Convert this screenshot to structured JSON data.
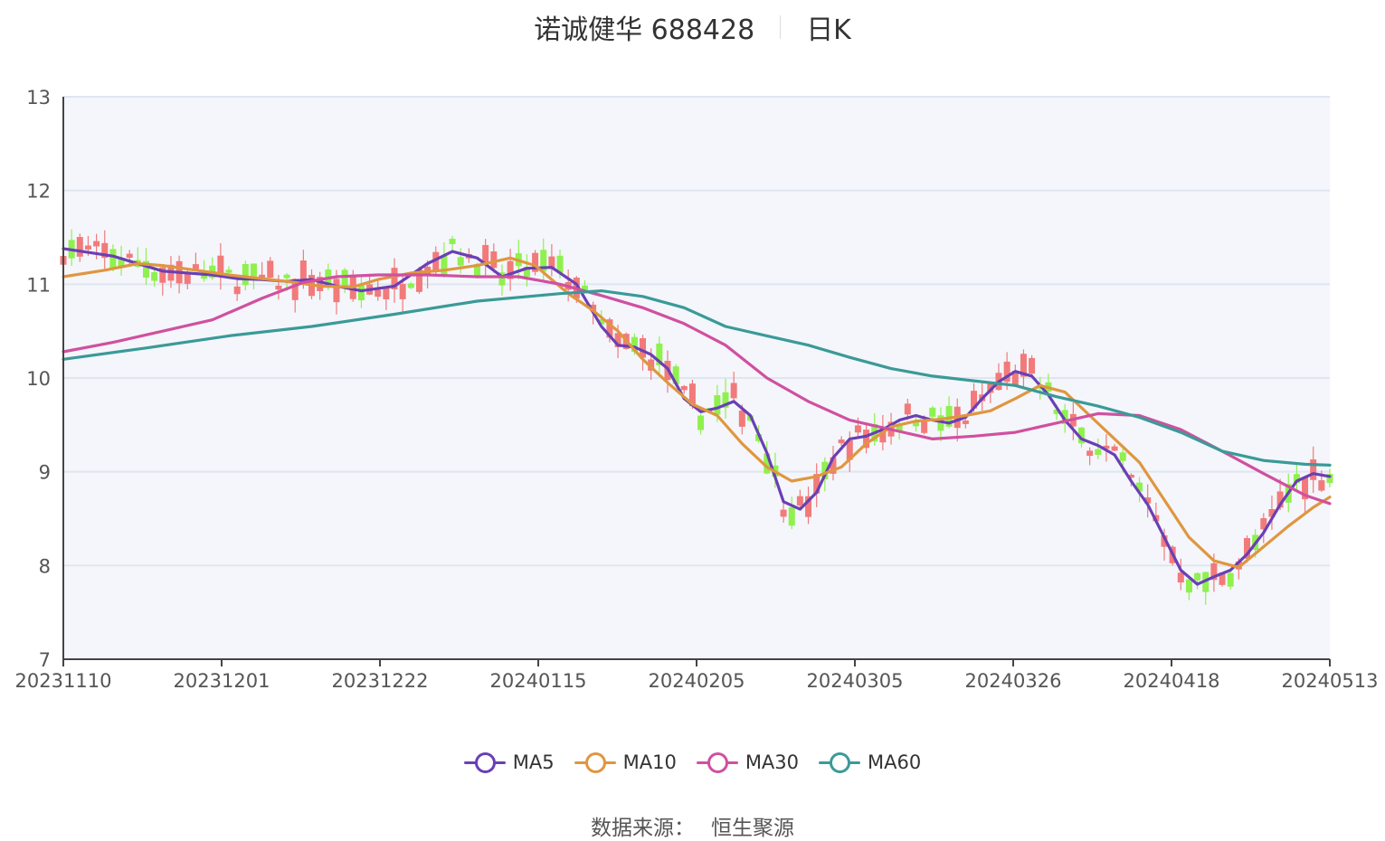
{
  "title": {
    "name": "诺诚健华 688428",
    "period": "日K"
  },
  "legend": [
    {
      "name": "MA5",
      "color": "#6a3fb5"
    },
    {
      "name": "MA10",
      "color": "#e0963f"
    },
    {
      "name": "MA30",
      "color": "#d050a0"
    },
    {
      "name": "MA60",
      "color": "#3a9a98"
    }
  ],
  "source": {
    "label": "数据来源：",
    "value": "恒生聚源"
  },
  "chart_data": {
    "type": "candlestick",
    "y_ticks": [
      7,
      8,
      9,
      10,
      11,
      12,
      13
    ],
    "ylim": [
      7,
      13
    ],
    "x_labels": [
      "20231110",
      "20231201",
      "20231222",
      "20240115",
      "20240205",
      "20240305",
      "20240326",
      "20240418",
      "20240513"
    ],
    "colors": {
      "up": "#f27a7a",
      "down": "#8ff04e",
      "grid": "#dfe6f0",
      "plot_bg": "#f4f6fb"
    },
    "series": [
      {
        "name": "MA5",
        "color": "#6a3fb5",
        "points": [
          [
            0,
            11.38
          ],
          [
            6,
            11.3
          ],
          [
            12,
            11.14
          ],
          [
            18,
            11.1
          ],
          [
            21,
            11.06
          ],
          [
            24,
            11.05
          ],
          [
            27,
            11.03
          ],
          [
            30,
            11.05
          ],
          [
            33,
            10.98
          ],
          [
            36,
            10.93
          ],
          [
            40,
            10.98
          ],
          [
            44,
            11.22
          ],
          [
            47,
            11.35
          ],
          [
            50,
            11.28
          ],
          [
            53,
            11.08
          ],
          [
            56,
            11.17
          ],
          [
            59,
            11.18
          ],
          [
            62,
            11.0
          ],
          [
            65,
            10.55
          ],
          [
            67,
            10.35
          ],
          [
            69,
            10.33
          ],
          [
            71,
            10.25
          ],
          [
            73,
            10.1
          ],
          [
            75,
            9.78
          ],
          [
            77,
            9.64
          ],
          [
            79,
            9.68
          ],
          [
            81,
            9.75
          ],
          [
            83,
            9.6
          ],
          [
            85,
            9.2
          ],
          [
            87,
            8.68
          ],
          [
            89,
            8.6
          ],
          [
            91,
            8.78
          ],
          [
            93,
            9.15
          ],
          [
            95,
            9.35
          ],
          [
            97,
            9.38
          ],
          [
            99,
            9.45
          ],
          [
            101,
            9.55
          ],
          [
            103,
            9.6
          ],
          [
            105,
            9.55
          ],
          [
            107,
            9.52
          ],
          [
            109,
            9.58
          ],
          [
            111,
            9.78
          ],
          [
            113,
            9.96
          ],
          [
            115,
            10.07
          ],
          [
            117,
            10.02
          ],
          [
            119,
            9.82
          ],
          [
            121,
            9.55
          ],
          [
            123,
            9.35
          ],
          [
            125,
            9.28
          ],
          [
            127,
            9.18
          ],
          [
            129,
            8.9
          ],
          [
            131,
            8.65
          ],
          [
            133,
            8.3
          ],
          [
            135,
            7.95
          ],
          [
            137,
            7.8
          ],
          [
            139,
            7.88
          ],
          [
            141,
            7.95
          ],
          [
            143,
            8.12
          ],
          [
            145,
            8.35
          ],
          [
            147,
            8.65
          ],
          [
            149,
            8.9
          ],
          [
            151,
            8.98
          ],
          [
            153,
            8.95
          ]
        ]
      },
      {
        "name": "MA10",
        "color": "#e0963f",
        "points": [
          [
            0,
            11.08
          ],
          [
            5,
            11.15
          ],
          [
            9,
            11.22
          ],
          [
            12,
            11.2
          ],
          [
            16,
            11.15
          ],
          [
            20,
            11.1
          ],
          [
            24,
            11.06
          ],
          [
            28,
            11.02
          ],
          [
            31,
            10.98
          ],
          [
            35,
            10.97
          ],
          [
            38,
            11.05
          ],
          [
            42,
            11.12
          ],
          [
            46,
            11.15
          ],
          [
            50,
            11.2
          ],
          [
            54,
            11.28
          ],
          [
            57,
            11.2
          ],
          [
            61,
            10.9
          ],
          [
            64,
            10.72
          ],
          [
            67,
            10.5
          ],
          [
            70,
            10.2
          ],
          [
            73,
            9.95
          ],
          [
            76,
            9.72
          ],
          [
            79,
            9.6
          ],
          [
            82,
            9.3
          ],
          [
            85,
            9.05
          ],
          [
            88,
            8.9
          ],
          [
            91,
            8.95
          ],
          [
            94,
            9.05
          ],
          [
            97,
            9.3
          ],
          [
            100,
            9.48
          ],
          [
            103,
            9.54
          ],
          [
            106,
            9.56
          ],
          [
            109,
            9.6
          ],
          [
            112,
            9.65
          ],
          [
            115,
            9.78
          ],
          [
            118,
            9.92
          ],
          [
            121,
            9.85
          ],
          [
            124,
            9.6
          ],
          [
            127,
            9.35
          ],
          [
            130,
            9.1
          ],
          [
            133,
            8.7
          ],
          [
            136,
            8.3
          ],
          [
            139,
            8.05
          ],
          [
            142,
            7.98
          ],
          [
            145,
            8.2
          ],
          [
            148,
            8.42
          ],
          [
            151,
            8.62
          ],
          [
            153,
            8.73
          ]
        ]
      },
      {
        "name": "MA30",
        "color": "#d050a0",
        "points": [
          [
            0,
            10.28
          ],
          [
            6,
            10.38
          ],
          [
            12,
            10.5
          ],
          [
            18,
            10.62
          ],
          [
            24,
            10.85
          ],
          [
            29,
            11.02
          ],
          [
            33,
            11.08
          ],
          [
            38,
            11.1
          ],
          [
            44,
            11.1
          ],
          [
            50,
            11.08
          ],
          [
            55,
            11.08
          ],
          [
            60,
            11.0
          ],
          [
            65,
            10.88
          ],
          [
            70,
            10.75
          ],
          [
            75,
            10.58
          ],
          [
            80,
            10.35
          ],
          [
            85,
            10.0
          ],
          [
            90,
            9.75
          ],
          [
            95,
            9.55
          ],
          [
            100,
            9.45
          ],
          [
            105,
            9.35
          ],
          [
            110,
            9.38
          ],
          [
            115,
            9.42
          ],
          [
            120,
            9.52
          ],
          [
            125,
            9.62
          ],
          [
            130,
            9.6
          ],
          [
            135,
            9.45
          ],
          [
            140,
            9.22
          ],
          [
            145,
            8.98
          ],
          [
            150,
            8.75
          ],
          [
            153,
            8.66
          ]
        ]
      },
      {
        "name": "MA60",
        "color": "#3a9a98",
        "points": [
          [
            0,
            10.2
          ],
          [
            10,
            10.32
          ],
          [
            20,
            10.45
          ],
          [
            30,
            10.55
          ],
          [
            40,
            10.68
          ],
          [
            50,
            10.82
          ],
          [
            60,
            10.9
          ],
          [
            65,
            10.93
          ],
          [
            70,
            10.87
          ],
          [
            75,
            10.75
          ],
          [
            80,
            10.55
          ],
          [
            85,
            10.45
          ],
          [
            90,
            10.35
          ],
          [
            95,
            10.22
          ],
          [
            100,
            10.1
          ],
          [
            105,
            10.02
          ],
          [
            110,
            9.97
          ],
          [
            115,
            9.92
          ],
          [
            120,
            9.8
          ],
          [
            125,
            9.7
          ],
          [
            130,
            9.58
          ],
          [
            135,
            9.42
          ],
          [
            140,
            9.22
          ],
          [
            145,
            9.12
          ],
          [
            150,
            9.08
          ],
          [
            153,
            9.07
          ]
        ]
      }
    ]
  }
}
